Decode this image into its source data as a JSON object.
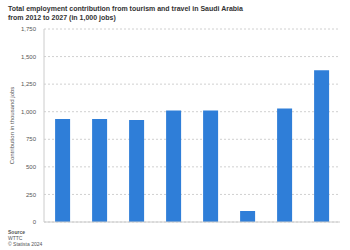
{
  "chart_data": {
    "type": "bar",
    "title": "Total employment contribution from tourism and travel in Saudi Arabia from 2012 to 2027 (in 1,000 jobs)",
    "y_label": "Contribution in thousand jobs",
    "annotations": [
      "Source",
      "WTTC",
      "© Statista 2024"
    ],
    "categories": [
      null,
      null,
      null,
      null,
      null,
      null,
      null,
      null
    ],
    "values": [
      935,
      935,
      925,
      1010,
      1010,
      100,
      1030,
      1375
    ],
    "color": "#2f7ed8",
    "ylim": [
      0,
      1750
    ],
    "yticks": [
      0,
      250,
      500,
      750,
      {
        "value": 1000,
        "label": "1,000"
      },
      {
        "value": 1250,
        "label": "1,250"
      },
      {
        "value": 1500,
        "label": "1,500"
      },
      {
        "value": 1750,
        "label": "1,750"
      }
    ],
    "grid": true,
    "tick_labels": "y",
    "data_labels": false
  }
}
